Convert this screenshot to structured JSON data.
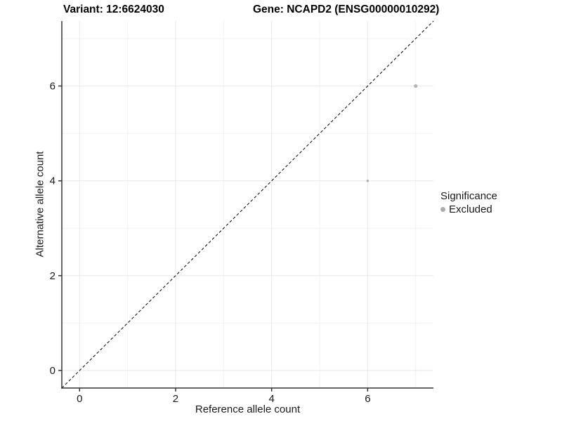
{
  "figure": {
    "title_left": "Variant: 12:6624030",
    "title_right": "Gene: NCAPD2 (ENSG00000010292)"
  },
  "chart_data": {
    "type": "scatter",
    "title_left": "Variant: 12:6624030",
    "title_right": "Gene: NCAPD2 (ENSG00000010292)",
    "xlabel": "Reference allele count",
    "ylabel": "Alternative allele count",
    "xlim": [
      -0.37,
      7.37
    ],
    "ylim": [
      -0.37,
      7.37
    ],
    "x_ticks": [
      0,
      2,
      4,
      6
    ],
    "y_ticks": [
      0,
      2,
      4,
      6
    ],
    "x_minor_ticks": [
      1,
      3,
      5,
      7
    ],
    "y_minor_ticks": [
      1,
      3,
      5,
      7
    ],
    "grid": "on",
    "reference_line": {
      "type": "identity",
      "slope": 1,
      "intercept": 0,
      "style": "dashed"
    },
    "series": [
      {
        "name": "Excluded",
        "color": "#b3b3b3",
        "points": [
          {
            "x": 7,
            "y": 6,
            "radius": 2.6
          },
          {
            "x": 6,
            "y": 4,
            "radius": 1.8
          }
        ]
      }
    ],
    "legend": {
      "title": "Significance",
      "position": "right",
      "entries": [
        {
          "label": "Excluded",
          "color": "#ababab"
        }
      ]
    }
  },
  "colors": {
    "background": "#ffffff",
    "grid_major": "#e8e8e8",
    "grid_minor": "#f2f2f2",
    "axis_line": "#333333",
    "tick_mark": "#333333",
    "tick_text": "#1a1a1a",
    "title_text": "#000000",
    "reference_line": "#000000"
  }
}
